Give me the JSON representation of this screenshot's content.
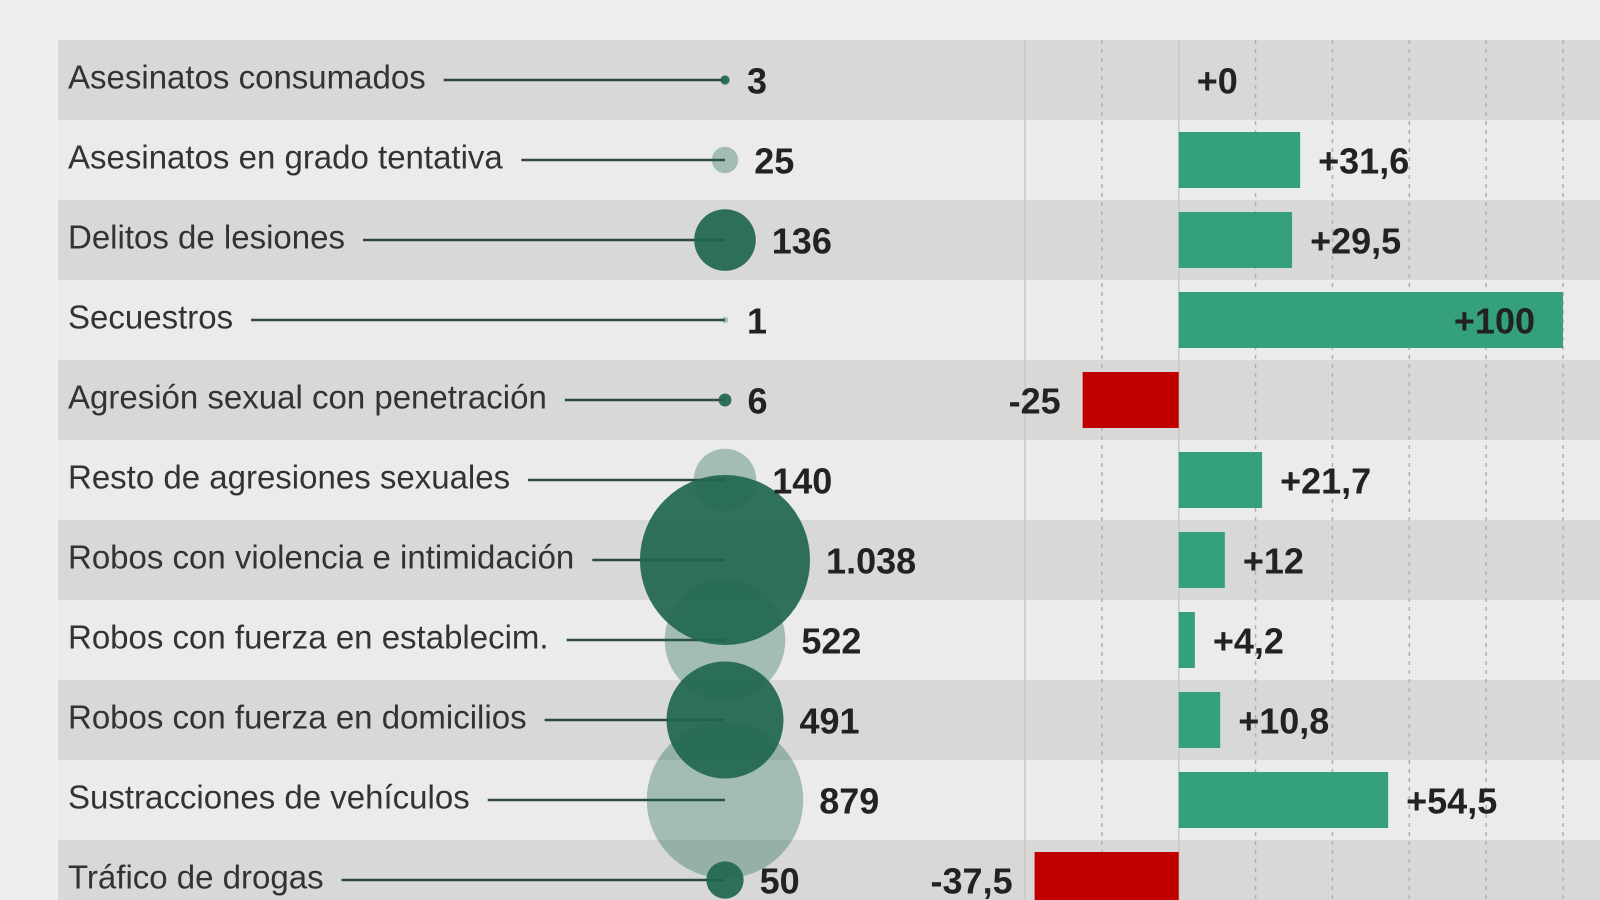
{
  "chart_data": [
    {
      "type": "bubble",
      "categories": [
        "Asesinatos consumados",
        "Asesinatos en grado tentativa",
        "Delitos de lesiones",
        "Secuestros",
        "Agresión sexual con penetración",
        "Resto de agresiones sexuales",
        "Robos con violencia e intimidación",
        "Robos con fuerza en establecim.",
        "Robos con fuerza en domicilios",
        "Sustracciones de vehículos",
        "Tráfico de drogas"
      ],
      "values": [
        3,
        25,
        136,
        1,
        6,
        140,
        1038,
        522,
        491,
        879,
        50
      ],
      "value_labels": [
        "3",
        "25",
        "136",
        "1",
        "6",
        "140",
        "1.038",
        "522",
        "491",
        "879",
        "50"
      ],
      "color": "#1f6650"
    },
    {
      "type": "bar",
      "values": [
        0,
        31.6,
        29.5,
        100,
        -25,
        21.7,
        12,
        4.2,
        10.8,
        54.5,
        -37.5
      ],
      "value_labels": [
        "+0",
        "+31,6",
        "+29,5",
        "+100",
        "-25",
        "+21,7",
        "+12",
        "+4,2",
        "+10,8",
        "+54,5",
        "-37,5"
      ],
      "positive_color": "#35a07e",
      "negative_color": "#c00000",
      "xlim": [
        -40,
        100
      ],
      "xticks": [
        -40,
        -20,
        0,
        20,
        40,
        60,
        80,
        100
      ],
      "grid": true
    }
  ]
}
